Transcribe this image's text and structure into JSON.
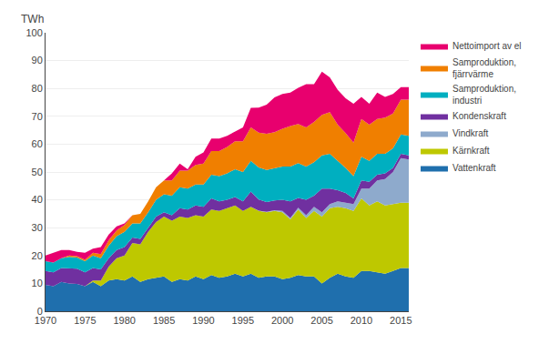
{
  "chart_data": {
    "type": "area",
    "stacked": true,
    "x": [
      1970,
      1971,
      1972,
      1973,
      1974,
      1975,
      1976,
      1977,
      1978,
      1979,
      1980,
      1981,
      1982,
      1983,
      1984,
      1985,
      1986,
      1987,
      1988,
      1989,
      1990,
      1991,
      1992,
      1993,
      1994,
      1995,
      1996,
      1997,
      1998,
      1999,
      2000,
      2001,
      2002,
      2003,
      2004,
      2005,
      2006,
      2007,
      2008,
      2009,
      2010,
      2011,
      2012,
      2013,
      2014,
      2015,
      2016
    ],
    "series": [
      {
        "name": "Vattenkraft",
        "color": "#1f6fad",
        "values": [
          9.5,
          9.0,
          10.5,
          10.0,
          9.8,
          9.0,
          10.5,
          9.0,
          11.0,
          11.5,
          11.0,
          12.5,
          10.5,
          11.5,
          12.0,
          12.5,
          10.5,
          11.5,
          11.0,
          12.5,
          11.5,
          13.0,
          12.0,
          12.5,
          13.5,
          12.5,
          13.5,
          12.0,
          12.5,
          12.5,
          11.5,
          12.0,
          13.0,
          12.5,
          12.5,
          10.0,
          12.0,
          13.5,
          12.5,
          12.0,
          14.5,
          14.5,
          14.0,
          13.5,
          14.5,
          15.5,
          15.5
        ]
      },
      {
        "name": "Kärnkraft",
        "color": "#bec800",
        "values": [
          0,
          0,
          0,
          0,
          0,
          0,
          0.5,
          2.0,
          5.0,
          7.5,
          9.0,
          12.0,
          13.5,
          17.0,
          20.0,
          21.5,
          22.0,
          22.5,
          22.5,
          22.0,
          22.5,
          23.5,
          24.0,
          24.5,
          24.5,
          23.5,
          24.0,
          24.0,
          23.0,
          23.5,
          24.0,
          21.0,
          23.5,
          21.0,
          23.5,
          24.0,
          25.0,
          24.0,
          24.5,
          24.0,
          26.0,
          23.5,
          25.5,
          24.5,
          24.0,
          23.5,
          23.5
        ]
      },
      {
        "name": "Vindkraft",
        "color": "#8eaacc",
        "values": [
          0,
          0,
          0,
          0,
          0,
          0,
          0,
          0,
          0,
          0,
          0,
          0,
          0,
          0,
          0,
          0,
          0,
          0,
          0,
          0,
          0,
          0,
          0,
          0,
          0,
          0,
          0,
          0.1,
          0.2,
          0.3,
          0.5,
          0.5,
          0.7,
          1.0,
          1.5,
          1.5,
          1.5,
          2.0,
          2.0,
          2.5,
          3.5,
          6.0,
          7.5,
          9.5,
          11.5,
          16.0,
          15.5
        ]
      },
      {
        "name": "Kondenskraft",
        "color": "#7030a0",
        "values": [
          5.0,
          5.0,
          5.0,
          5.5,
          5.5,
          5.0,
          4.5,
          4.0,
          3.0,
          3.0,
          3.0,
          2.0,
          2.0,
          1.5,
          2.0,
          1.5,
          2.0,
          3.0,
          3.0,
          3.5,
          3.5,
          4.0,
          3.5,
          3.0,
          3.0,
          3.5,
          5.5,
          4.0,
          3.5,
          3.5,
          4.0,
          6.0,
          3.5,
          5.5,
          4.0,
          8.5,
          5.5,
          4.0,
          3.5,
          2.0,
          3.0,
          2.5,
          2.0,
          2.0,
          1.5,
          1.5,
          1.5
        ]
      },
      {
        "name": "Samproduktion,\nindustri",
        "color": "#00afc0",
        "values": [
          3.5,
          3.5,
          3.5,
          4.0,
          4.0,
          4.0,
          4.5,
          4.0,
          4.5,
          5.0,
          5.5,
          5.0,
          5.5,
          5.5,
          6.0,
          6.5,
          7.0,
          7.5,
          7.5,
          7.5,
          8.0,
          8.5,
          9.0,
          9.5,
          10.0,
          10.5,
          11.0,
          11.5,
          11.5,
          11.5,
          12.0,
          12.5,
          12.5,
          12.0,
          12.0,
          12.0,
          12.5,
          10.5,
          9.0,
          8.0,
          8.5,
          7.5,
          7.5,
          7.0,
          7.0,
          7.0,
          7.0
        ]
      },
      {
        "name": "Samproduktion,\nfjärrvärme",
        "color": "#f07f00",
        "values": [
          0,
          0,
          0,
          0.5,
          0.5,
          0.5,
          1.0,
          1.5,
          2.0,
          2.0,
          2.5,
          3.0,
          3.5,
          4.0,
          4.5,
          5.0,
          5.5,
          6.0,
          6.5,
          7.0,
          7.5,
          8.5,
          9.0,
          9.5,
          10.0,
          11.0,
          12.0,
          12.5,
          13.0,
          13.0,
          13.5,
          14.5,
          14.0,
          14.0,
          14.5,
          14.5,
          15.0,
          13.0,
          12.5,
          12.0,
          13.5,
          13.0,
          12.5,
          13.0,
          12.5,
          12.5,
          13.0
        ]
      },
      {
        "name": "Nettoimport av el",
        "color": "#e8006e",
        "values": [
          2.0,
          3.5,
          3.0,
          2.0,
          1.5,
          2.5,
          1.5,
          2.5,
          2.0,
          1.5,
          0.5,
          0,
          0,
          0,
          0,
          0,
          2.5,
          2.5,
          0.5,
          3.0,
          4.0,
          4.5,
          4.5,
          4.0,
          3.5,
          5.0,
          7.0,
          9.0,
          10.5,
          12.5,
          12.5,
          12.0,
          13.0,
          15.5,
          13.5,
          15.5,
          12.5,
          12.5,
          12.5,
          14.0,
          8.0,
          7.5,
          9.5,
          7.5,
          7.0,
          4.5,
          4.5
        ]
      }
    ],
    "xlim": [
      1970,
      2016
    ],
    "xticks": [
      1970,
      1975,
      1980,
      1985,
      1990,
      1995,
      2000,
      2005,
      2010,
      2015
    ],
    "ylim": [
      0,
      100
    ],
    "yticks": [
      0,
      10,
      20,
      30,
      40,
      50,
      60,
      70,
      80,
      90,
      100
    ],
    "ylabel": "TWh",
    "grid": true,
    "legend": "right"
  }
}
